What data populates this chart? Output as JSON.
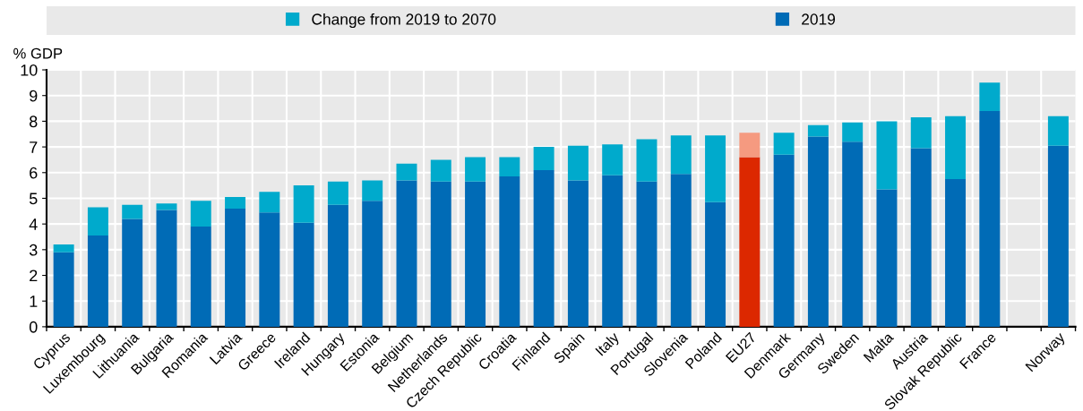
{
  "chart_data": {
    "type": "bar",
    "stacked": true,
    "ylabel": "% GDP",
    "categories": [
      "Cyprus",
      "Luxembourg",
      "Lithuania",
      "Bulgaria",
      "Romania",
      "Latvia",
      "Greece",
      "Ireland",
      "Hungary",
      "Estonia",
      "Belgium",
      "Netherlands",
      "Czech Republic",
      "Croatia",
      "Finland",
      "Spain",
      "Italy",
      "Portugal",
      "Slovenia",
      "Poland",
      "EU27",
      "Denmark",
      "Germany",
      "Sweden",
      "Malta",
      "Austria",
      "Slovak Republic",
      "France",
      null,
      "Norway"
    ],
    "series": [
      {
        "name": "2019",
        "color": "#006bb6",
        "colors": [
          "#006bb6",
          "#006bb6",
          "#006bb6",
          "#006bb6",
          "#006bb6",
          "#006bb6",
          "#006bb6",
          "#006bb6",
          "#006bb6",
          "#006bb6",
          "#006bb6",
          "#006bb6",
          "#006bb6",
          "#006bb6",
          "#006bb6",
          "#006bb6",
          "#006bb6",
          "#006bb6",
          "#006bb6",
          "#006bb6",
          "#dc2800",
          "#006bb6",
          "#006bb6",
          "#006bb6",
          "#006bb6",
          "#006bb6",
          "#006bb6",
          "#006bb6",
          "#006bb6",
          "#006bb6"
        ],
        "values": [
          2.9,
          3.55,
          4.2,
          4.55,
          3.9,
          4.6,
          4.45,
          4.05,
          4.75,
          4.9,
          5.7,
          5.65,
          5.65,
          5.85,
          6.1,
          5.7,
          5.9,
          5.65,
          5.95,
          4.85,
          6.6,
          6.7,
          7.4,
          7.2,
          5.35,
          6.95,
          5.75,
          8.4,
          null,
          7.05
        ]
      },
      {
        "name": "Change from 2019 to 2070",
        "color": "#00aacc",
        "colors": [
          "#00aacc",
          "#00aacc",
          "#00aacc",
          "#00aacc",
          "#00aacc",
          "#00aacc",
          "#00aacc",
          "#00aacc",
          "#00aacc",
          "#00aacc",
          "#00aacc",
          "#00aacc",
          "#00aacc",
          "#00aacc",
          "#00aacc",
          "#00aacc",
          "#00aacc",
          "#00aacc",
          "#00aacc",
          "#00aacc",
          "#f59a80",
          "#00aacc",
          "#00aacc",
          "#00aacc",
          "#00aacc",
          "#00aacc",
          "#00aacc",
          "#00aacc",
          "#00aacc",
          "#00aacc"
        ],
        "values": [
          0.3,
          1.1,
          0.55,
          0.25,
          1.0,
          0.45,
          0.8,
          1.45,
          0.9,
          0.8,
          0.65,
          0.85,
          0.95,
          0.75,
          0.9,
          1.35,
          1.2,
          1.65,
          1.5,
          2.6,
          0.95,
          0.85,
          0.45,
          0.75,
          2.65,
          1.2,
          2.45,
          1.1,
          null,
          1.15
        ]
      }
    ],
    "ylim": [
      0,
      10
    ],
    "yticks": [
      0,
      1,
      2,
      3,
      4,
      5,
      6,
      7,
      8,
      9,
      10
    ],
    "grid": true,
    "legend": "top"
  }
}
